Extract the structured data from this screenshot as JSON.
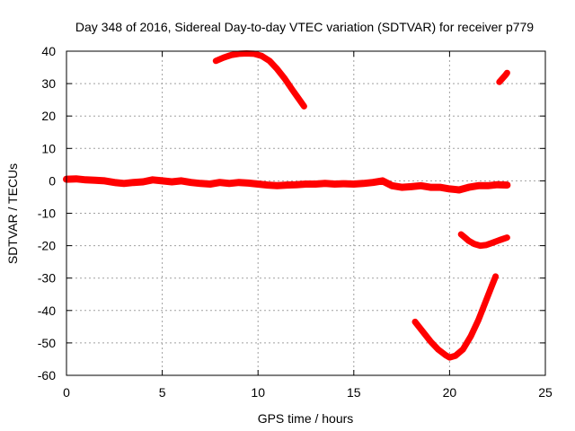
{
  "chart_data": {
    "type": "scatter",
    "title": "Day 348 of 2016, Sidereal Day-to-day VTEC variation (SDTVAR) for receiver p779",
    "xlabel": "GPS time / hours",
    "ylabel": "SDTVAR / TECUs",
    "xlim": [
      0,
      25
    ],
    "ylim": [
      -60,
      40
    ],
    "xticks": [
      0,
      5,
      10,
      15,
      20,
      25
    ],
    "yticks": [
      -60,
      -50,
      -40,
      -30,
      -20,
      -10,
      0,
      10,
      20,
      30,
      40
    ],
    "grid": true,
    "color": "#ff0000",
    "series": [
      {
        "name": "main-track",
        "x": [
          0,
          0.5,
          1,
          1.5,
          2,
          2.5,
          3,
          3.5,
          4,
          4.5,
          5,
          5.5,
          6,
          6.5,
          7,
          7.5,
          8,
          8.5,
          9,
          9.5,
          10,
          10.5,
          11,
          11.5,
          12,
          12.5,
          13,
          13.5,
          14,
          14.5,
          15,
          15.5,
          16,
          16.5,
          17,
          17.5,
          18,
          18.5,
          19,
          19.5,
          20,
          20.5,
          21,
          21.5,
          22,
          22.5,
          23
        ],
        "y": [
          0.5,
          0.6,
          0.3,
          0.2,
          0,
          -0.5,
          -0.8,
          -0.5,
          -0.3,
          0.3,
          0,
          -0.3,
          0,
          -0.5,
          -0.8,
          -1,
          -0.5,
          -0.8,
          -0.5,
          -0.7,
          -1,
          -1.3,
          -1.5,
          -1.3,
          -1.2,
          -1,
          -1,
          -0.8,
          -1,
          -0.9,
          -1,
          -0.8,
          -0.5,
          0,
          -1.5,
          -2,
          -1.8,
          -1.5,
          -2,
          -2,
          -2.5,
          -2.8,
          -2,
          -1.5,
          -1.5,
          -1.2,
          -1.3
        ]
      },
      {
        "name": "upper-arc",
        "x": [
          7.8,
          8.2,
          8.6,
          9.0,
          9.4,
          9.8,
          10.2,
          10.6,
          11.0,
          11.4,
          11.8,
          12.1,
          12.4
        ],
        "y": [
          37,
          38,
          38.8,
          39.2,
          39.3,
          39.2,
          38.5,
          37,
          34.5,
          31.5,
          28,
          25.5,
          23
        ]
      },
      {
        "name": "upper-right-fragment",
        "x": [
          22.6,
          22.75,
          22.9,
          23.0
        ],
        "y": [
          30.5,
          31.5,
          32.5,
          33.3
        ]
      },
      {
        "name": "lower-right-arc",
        "x": [
          20.6,
          20.8,
          21.0,
          21.3,
          21.6,
          21.9,
          22.2,
          22.6,
          23.0
        ],
        "y": [
          -16.5,
          -17.5,
          -18.5,
          -19.5,
          -20,
          -19.8,
          -19.2,
          -18.3,
          -17.5
        ]
      },
      {
        "name": "bottom-v",
        "x": [
          18.2,
          18.6,
          19.0,
          19.4,
          19.8,
          20.0,
          20.3,
          20.7,
          21.1,
          21.5,
          21.9,
          22.2,
          22.4
        ],
        "y": [
          -43.5,
          -46.5,
          -49.5,
          -52,
          -53.8,
          -54.5,
          -54,
          -52,
          -48,
          -43,
          -37,
          -32.5,
          -29.5
        ]
      }
    ]
  }
}
